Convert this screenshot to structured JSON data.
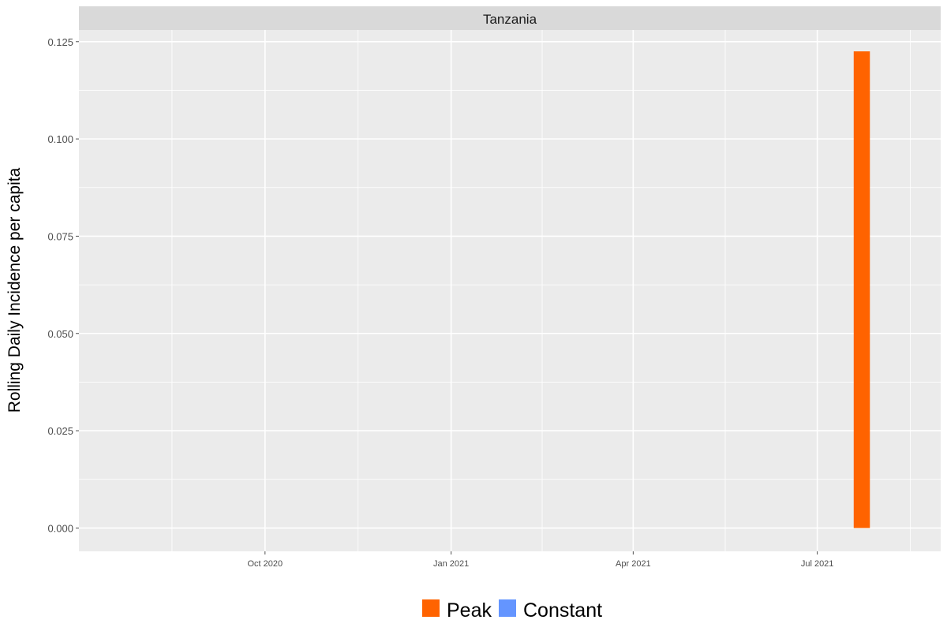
{
  "chart_data": {
    "type": "bar",
    "facet_label": "Tanzania",
    "xlabel": "",
    "ylabel": "Rolling Daily Incidence per capita",
    "x_range": [
      "2020-07-01",
      "2021-08-31"
    ],
    "x_ticks": [
      {
        "date": "2020-10-01",
        "label": "Oct 2020"
      },
      {
        "date": "2021-01-01",
        "label": "Jan 2021"
      },
      {
        "date": "2021-04-01",
        "label": "Apr 2021"
      },
      {
        "date": "2021-07-01",
        "label": "Jul 2021"
      }
    ],
    "ylim": [
      -0.006,
      0.128
    ],
    "y_ticks": [
      "0.000",
      "0.025",
      "0.050",
      "0.075",
      "0.100",
      "0.125"
    ],
    "grid": true,
    "series": [
      {
        "name": "Peak",
        "color": "#FF6300",
        "points": [
          {
            "start": "2021-07-19",
            "end": "2021-07-27",
            "value": 0.1225
          }
        ]
      },
      {
        "name": "Constant",
        "color": "#6495FF",
        "points": []
      }
    ],
    "legend_position": "bottom"
  }
}
